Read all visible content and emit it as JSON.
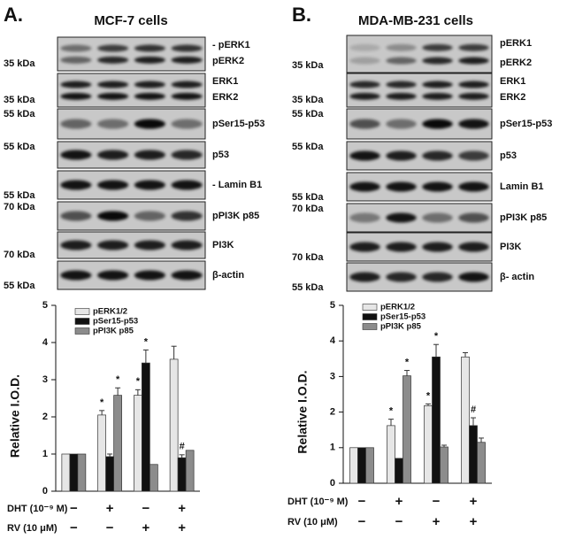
{
  "panels": [
    {
      "label": "A.",
      "title": "MCF-7 cells",
      "blots": [
        {
          "marker": "35 kDa",
          "bands": [
            "- pERK1",
            "pERK2"
          ]
        },
        {
          "marker": "35 kDa",
          "bands": [
            "ERK1",
            "ERK2"
          ]
        },
        {
          "marker": "55 kDa",
          "bands": [
            "pSer15-p53"
          ]
        },
        {
          "marker": "55 kDa",
          "bands": [
            "p53"
          ]
        },
        {
          "marker": "55 kDa",
          "bands": [
            "- Lamin B1"
          ]
        },
        {
          "marker": "70 kDa",
          "bands": [
            "pPI3K p85"
          ]
        },
        {
          "marker": "70 kDa",
          "bands": [
            "PI3K"
          ]
        },
        {
          "marker": "55 kDa",
          "bands": [
            "β-actin"
          ]
        }
      ]
    },
    {
      "label": "B.",
      "title": "MDA-MB-231 cells",
      "blots": [
        {
          "marker": "35 kDa",
          "bands": [
            "pERK1",
            "pERK2"
          ]
        },
        {
          "marker": "35 kDa",
          "bands": [
            "ERK1",
            "ERK2"
          ]
        },
        {
          "marker": "55 kDa",
          "bands": [
            "pSer15-p53"
          ]
        },
        {
          "marker": "55 kDa",
          "bands": [
            "p53"
          ]
        },
        {
          "marker": "55 kDa",
          "bands": [
            "Lamin B1"
          ]
        },
        {
          "marker": "70 kDa",
          "bands": [
            "pPI3K p85"
          ]
        },
        {
          "marker": "70 kDa",
          "bands": [
            "PI3K"
          ]
        },
        {
          "marker": "55 kDa",
          "bands": [
            "β- actin"
          ]
        }
      ]
    }
  ],
  "chart_data": [
    {
      "type": "bar",
      "y_label": "Relative I.O.D.",
      "ylim": [
        0,
        5
      ],
      "yticks": [
        0,
        1,
        2,
        3,
        4,
        5
      ],
      "treatments": [
        {
          "label": "DHT (10⁻⁹ M)",
          "signs": [
            "−",
            "+",
            "−",
            "+"
          ]
        },
        {
          "label": "RV (10 μM)",
          "signs": [
            "−",
            "−",
            "+",
            "+"
          ]
        }
      ],
      "series": [
        {
          "name": "pERK1/2",
          "color": "#e6e6e6",
          "values": [
            1,
            2.05,
            2.58,
            3.55
          ],
          "errors": [
            0,
            0.12,
            0.15,
            0.35
          ],
          "markers": [
            null,
            "*",
            "*",
            null
          ]
        },
        {
          "name": "pSer15-p53",
          "color": "#111111",
          "values": [
            1,
            0.93,
            3.45,
            0.9
          ],
          "errors": [
            0,
            0.07,
            0.35,
            0.08
          ],
          "markers": [
            null,
            null,
            "*",
            "#"
          ]
        },
        {
          "name": "pPI3K p85",
          "color": "#8c8c8c",
          "values": [
            1,
            2.58,
            0.72,
            1.1
          ],
          "errors": [
            0,
            0.2,
            0,
            0
          ],
          "markers": [
            null,
            "*",
            null,
            null
          ]
        }
      ]
    },
    {
      "type": "bar",
      "y_label": "Relative I.O.D.",
      "ylim": [
        0,
        5
      ],
      "yticks": [
        0,
        1,
        2,
        3,
        4,
        5
      ],
      "treatments": [
        {
          "label": "DHT (10⁻⁹ M)",
          "signs": [
            "−",
            "+",
            "−",
            "+"
          ]
        },
        {
          "label": "RV (10 μM)",
          "signs": [
            "−",
            "−",
            "+",
            "+"
          ]
        }
      ],
      "series": [
        {
          "name": "pERK1/2",
          "color": "#e6e6e6",
          "values": [
            1,
            1.62,
            2.18,
            3.55
          ],
          "errors": [
            0,
            0.18,
            0.05,
            0.12
          ],
          "markers": [
            null,
            "*",
            "*",
            null
          ]
        },
        {
          "name": "pSer15-p53",
          "color": "#111111",
          "values": [
            1,
            0.7,
            3.55,
            1.62
          ],
          "errors": [
            0,
            0,
            0.35,
            0.22
          ],
          "markers": [
            null,
            null,
            "*",
            "#"
          ]
        },
        {
          "name": "pPI3K p85",
          "color": "#8c8c8c",
          "values": [
            1,
            3.02,
            1.02,
            1.15
          ],
          "errors": [
            0,
            0.15,
            0.05,
            0.12
          ],
          "markers": [
            null,
            "*",
            null,
            null
          ]
        }
      ]
    }
  ]
}
